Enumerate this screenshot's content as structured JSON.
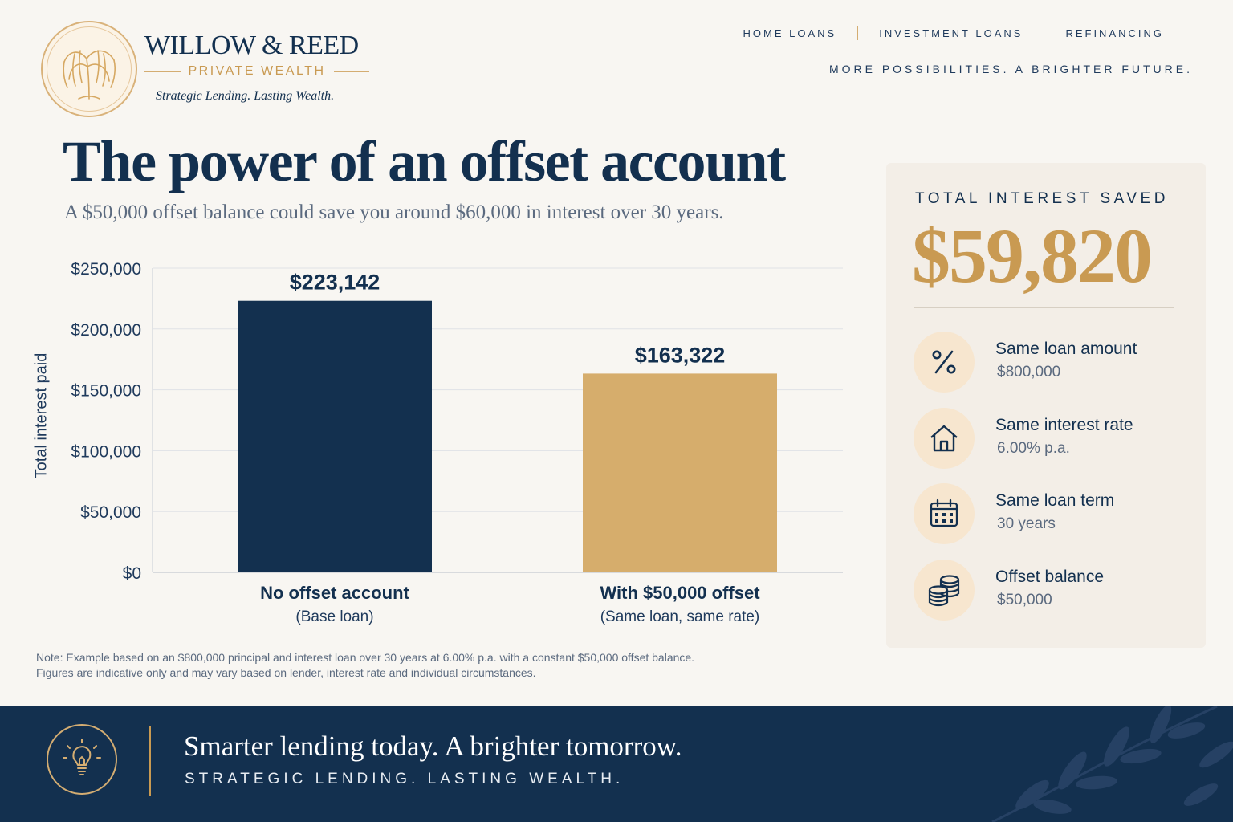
{
  "brand": {
    "name": "WILLOW & REED",
    "sub": "PRIVATE WEALTH",
    "tagline": "Strategic Lending. Lasting Wealth."
  },
  "nav": {
    "items": [
      {
        "label": "HOME LOANS"
      },
      {
        "label": "INVESTMENT LOANS"
      },
      {
        "label": "REFINANCING"
      }
    ],
    "slogan": "MORE POSSIBILITIES. A BRIGHTER FUTURE."
  },
  "headline": {
    "title": "The power of an offset account",
    "subtitle": "A $50,000 offset balance could save you around $60,000 in interest over 30 years."
  },
  "chart_data": {
    "type": "bar",
    "title": "",
    "xlabel": "",
    "ylabel": "Total interest paid",
    "ylim": [
      0,
      250000
    ],
    "yticks": [
      0,
      50000,
      100000,
      150000,
      200000,
      250000
    ],
    "ytick_labels": [
      "$0",
      "$50,000",
      "$100,000",
      "$150,000",
      "$200,000",
      "$250,000"
    ],
    "grid": true,
    "categories": [
      "No offset account",
      "With $50,000 offset"
    ],
    "category_sublabels": [
      "(Base loan)",
      "(Same loan, same rate)"
    ],
    "values": [
      223142,
      163322
    ],
    "value_labels": [
      "$223,142",
      "$163,322"
    ],
    "colors": [
      "#13304f",
      "#d6ad6c"
    ]
  },
  "note": {
    "line1": "Note: Example based on an $800,000 principal and interest loan over 30 years at 6.00% p.a. with a constant $50,000 offset balance.",
    "line2": "Figures are indicative only and may vary based on lender, interest rate and individual circumstances."
  },
  "summary": {
    "label": "TOTAL INTEREST SAVED",
    "value": "$59,820",
    "features": [
      {
        "icon": "percent-icon",
        "title": "Same loan amount",
        "value": "$800,000"
      },
      {
        "icon": "house-icon",
        "title": "Same interest rate",
        "value": "6.00% p.a."
      },
      {
        "icon": "calendar-icon",
        "title": "Same loan term",
        "value": "30 years"
      },
      {
        "icon": "coins-icon",
        "title": "Offset balance",
        "value": "$50,000"
      }
    ]
  },
  "footer": {
    "title": "Smarter lending today. A brighter tomorrow.",
    "subtitle": "STRATEGIC LENDING. LASTING WEALTH."
  },
  "colors": {
    "navy": "#13304f",
    "gold": "#c99a52",
    "background": "#f8f6f2",
    "panel": "#f3eee7"
  }
}
